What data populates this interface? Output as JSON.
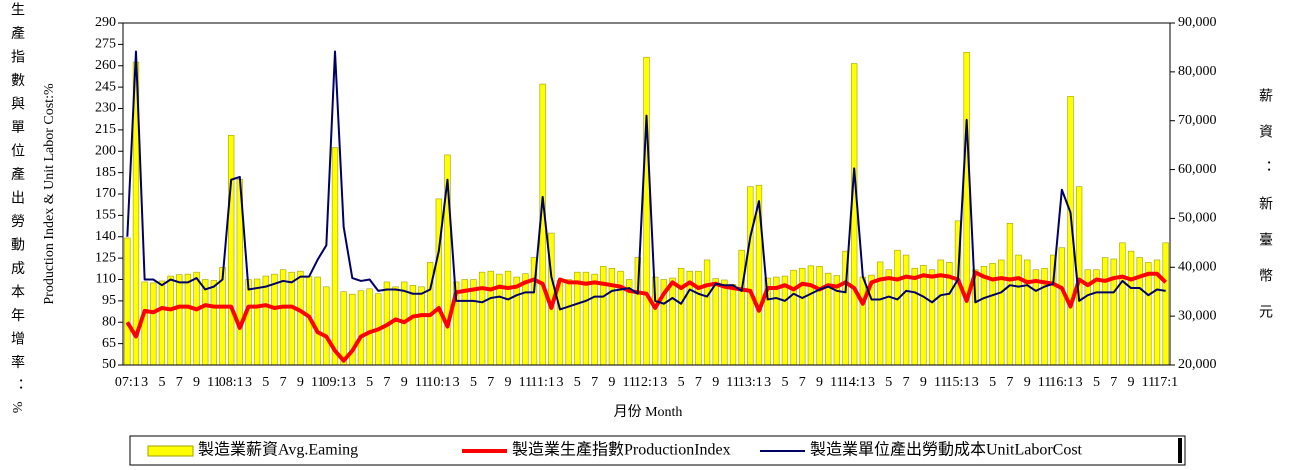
{
  "chart_data": {
    "type": "bar_line",
    "y_label": "Production Index & Unit Labor Cost:%",
    "y_label_cn": "生產指數與單位產出勞動成本年增率：%",
    "y2_label": "薪資：新臺幣元",
    "x_label": "月份 Month",
    "categories": [
      "07:1",
      null,
      "3",
      null,
      "5",
      null,
      "7",
      null,
      "9",
      null,
      "11",
      null,
      "08:1",
      null,
      "3",
      null,
      "5",
      null,
      "7",
      null,
      "9",
      null,
      "11",
      null,
      "09:1",
      null,
      "3",
      null,
      "5",
      null,
      "7",
      null,
      "9",
      null,
      "11",
      null,
      "10:1",
      null,
      "3",
      null,
      "5",
      null,
      "7",
      null,
      "9",
      null,
      "11",
      null,
      "11:1",
      null,
      "3",
      null,
      "5",
      null,
      "7",
      null,
      "9",
      null,
      "11",
      null,
      "12:1",
      null,
      "3",
      null,
      "5",
      null,
      "7",
      null,
      "9",
      null,
      "11",
      null,
      "13:1",
      null,
      "3",
      null,
      "5",
      null,
      "7",
      null,
      "9",
      null,
      "11",
      null,
      "14:1",
      null,
      "3",
      null,
      "5",
      null,
      "7",
      null,
      "9",
      null,
      "11",
      null,
      "15:1",
      null,
      "3",
      null,
      "5",
      null,
      "7",
      null,
      "9",
      null,
      "11",
      null,
      "16:1",
      null,
      "3",
      null,
      "5",
      null,
      "7",
      null,
      "9",
      null,
      "11",
      null,
      "17:1"
    ],
    "series": [
      {
        "name": "製造業薪資Avg.Eaming",
        "color": "#ffff00",
        "axis": "y2",
        "kind": "bar",
        "values": [
          46000,
          82000,
          37000,
          36800,
          37200,
          38200,
          38500,
          38600,
          39000,
          37500,
          37300,
          40000,
          67000,
          58000,
          37500,
          37600,
          38200,
          38600,
          39500,
          39000,
          39200,
          38200,
          38000,
          36000,
          64500,
          35000,
          34500,
          35200,
          35600,
          34600,
          37000,
          36000,
          37000,
          36300,
          36000,
          41000,
          54000,
          63000,
          37000,
          37500,
          37500,
          39000,
          39200,
          38600,
          39200,
          38000,
          38700,
          42000,
          77500,
          47000,
          37300,
          37500,
          39000,
          39000,
          38600,
          40200,
          39800,
          39200,
          37500,
          42000,
          83000,
          38000,
          37500,
          37800,
          39800,
          39200,
          39200,
          41500,
          37700,
          37400,
          36500,
          43500,
          56500,
          56800,
          37800,
          38000,
          38200,
          39400,
          39800,
          40300,
          40200,
          38800,
          38300,
          43300,
          81700,
          38000,
          38400,
          41100,
          39500,
          43500,
          42500,
          39800,
          40400,
          39500,
          41500,
          41000,
          49500,
          84000,
          39500,
          40200,
          40800,
          41500,
          49000,
          42500,
          41500,
          39500,
          39800,
          42500,
          44000,
          75000,
          56500,
          39500,
          39500,
          42000,
          41700,
          45000,
          43300,
          42000,
          41000,
          41500,
          45000
        ]
      },
      {
        "name": "製造業生產指數ProductionIndex",
        "color": "#ff0000",
        "kind": "line",
        "values": [
          80,
          70,
          88,
          87,
          90,
          89,
          91,
          91,
          89,
          92,
          91,
          91,
          91,
          76,
          91,
          91,
          92,
          90,
          91,
          91,
          88,
          84,
          73,
          70,
          60,
          53,
          60,
          70,
          73,
          75,
          78,
          82,
          80,
          84,
          85,
          85,
          90,
          77,
          101,
          102,
          103,
          104,
          103,
          105,
          104,
          105,
          108,
          110,
          107,
          90,
          110,
          108,
          108,
          107,
          108,
          107,
          106,
          105,
          102,
          101,
          100,
          90,
          100,
          108,
          104,
          108,
          104,
          106,
          107,
          105,
          104,
          103,
          102,
          88,
          104,
          104,
          106,
          103,
          107,
          106,
          103,
          106,
          105,
          108,
          104,
          93,
          108,
          110,
          111,
          110,
          112,
          111,
          113,
          112,
          113,
          112,
          110,
          95,
          115,
          112,
          110,
          111,
          110,
          111,
          108,
          109,
          108,
          107,
          104,
          91,
          110,
          106,
          110,
          109,
          111,
          112,
          110,
          112,
          114,
          114,
          108
        ]
      },
      {
        "name": "製造業單位產出勞動成本UnitLaborCost",
        "color": "#000066",
        "kind": "line",
        "values": [
          140,
          270,
          110,
          110,
          106,
          110,
          108,
          108,
          111,
          103,
          105,
          110,
          180,
          182,
          103,
          104,
          105,
          107,
          109,
          108,
          112,
          112,
          124,
          134,
          270,
          147,
          111,
          109,
          110,
          102,
          103,
          103,
          102,
          100,
          100,
          103,
          130,
          180,
          95,
          95,
          95,
          94,
          97,
          98,
          96,
          99,
          101,
          101,
          168,
          112,
          89,
          91,
          93,
          95,
          98,
          98,
          102,
          103,
          104,
          100,
          225,
          95,
          93,
          97,
          93,
          103,
          100,
          98,
          107,
          106,
          106,
          102,
          140,
          165,
          96,
          97,
          95,
          100,
          97,
          100,
          103,
          105,
          102,
          101,
          188,
          112,
          96,
          96,
          98,
          96,
          102,
          101,
          98,
          94,
          99,
          100,
          110,
          222,
          94,
          97,
          99,
          101,
          106,
          105,
          106,
          102,
          105,
          107,
          173,
          157,
          95,
          99,
          101,
          101,
          101,
          109,
          104,
          104,
          99,
          103,
          102
        ]
      }
    ],
    "ylim": [
      50,
      290
    ],
    "yticks": [
      50,
      65,
      80,
      95,
      110,
      125,
      140,
      155,
      170,
      185,
      200,
      215,
      230,
      245,
      260,
      275,
      290
    ],
    "y2lim": [
      20000,
      90000
    ],
    "y2ticks": [
      {
        "value": 20000,
        "label": "20,000"
      },
      {
        "value": 30000,
        "label": "30,000"
      },
      {
        "value": 40000,
        "label": "40,000"
      },
      {
        "value": 50000,
        "label": "50,000"
      },
      {
        "value": 60000,
        "label": "60,000"
      },
      {
        "value": 70000,
        "label": "70,000"
      },
      {
        "value": 80000,
        "label": "80,000"
      },
      {
        "value": 90000,
        "label": "90,000"
      }
    ]
  }
}
